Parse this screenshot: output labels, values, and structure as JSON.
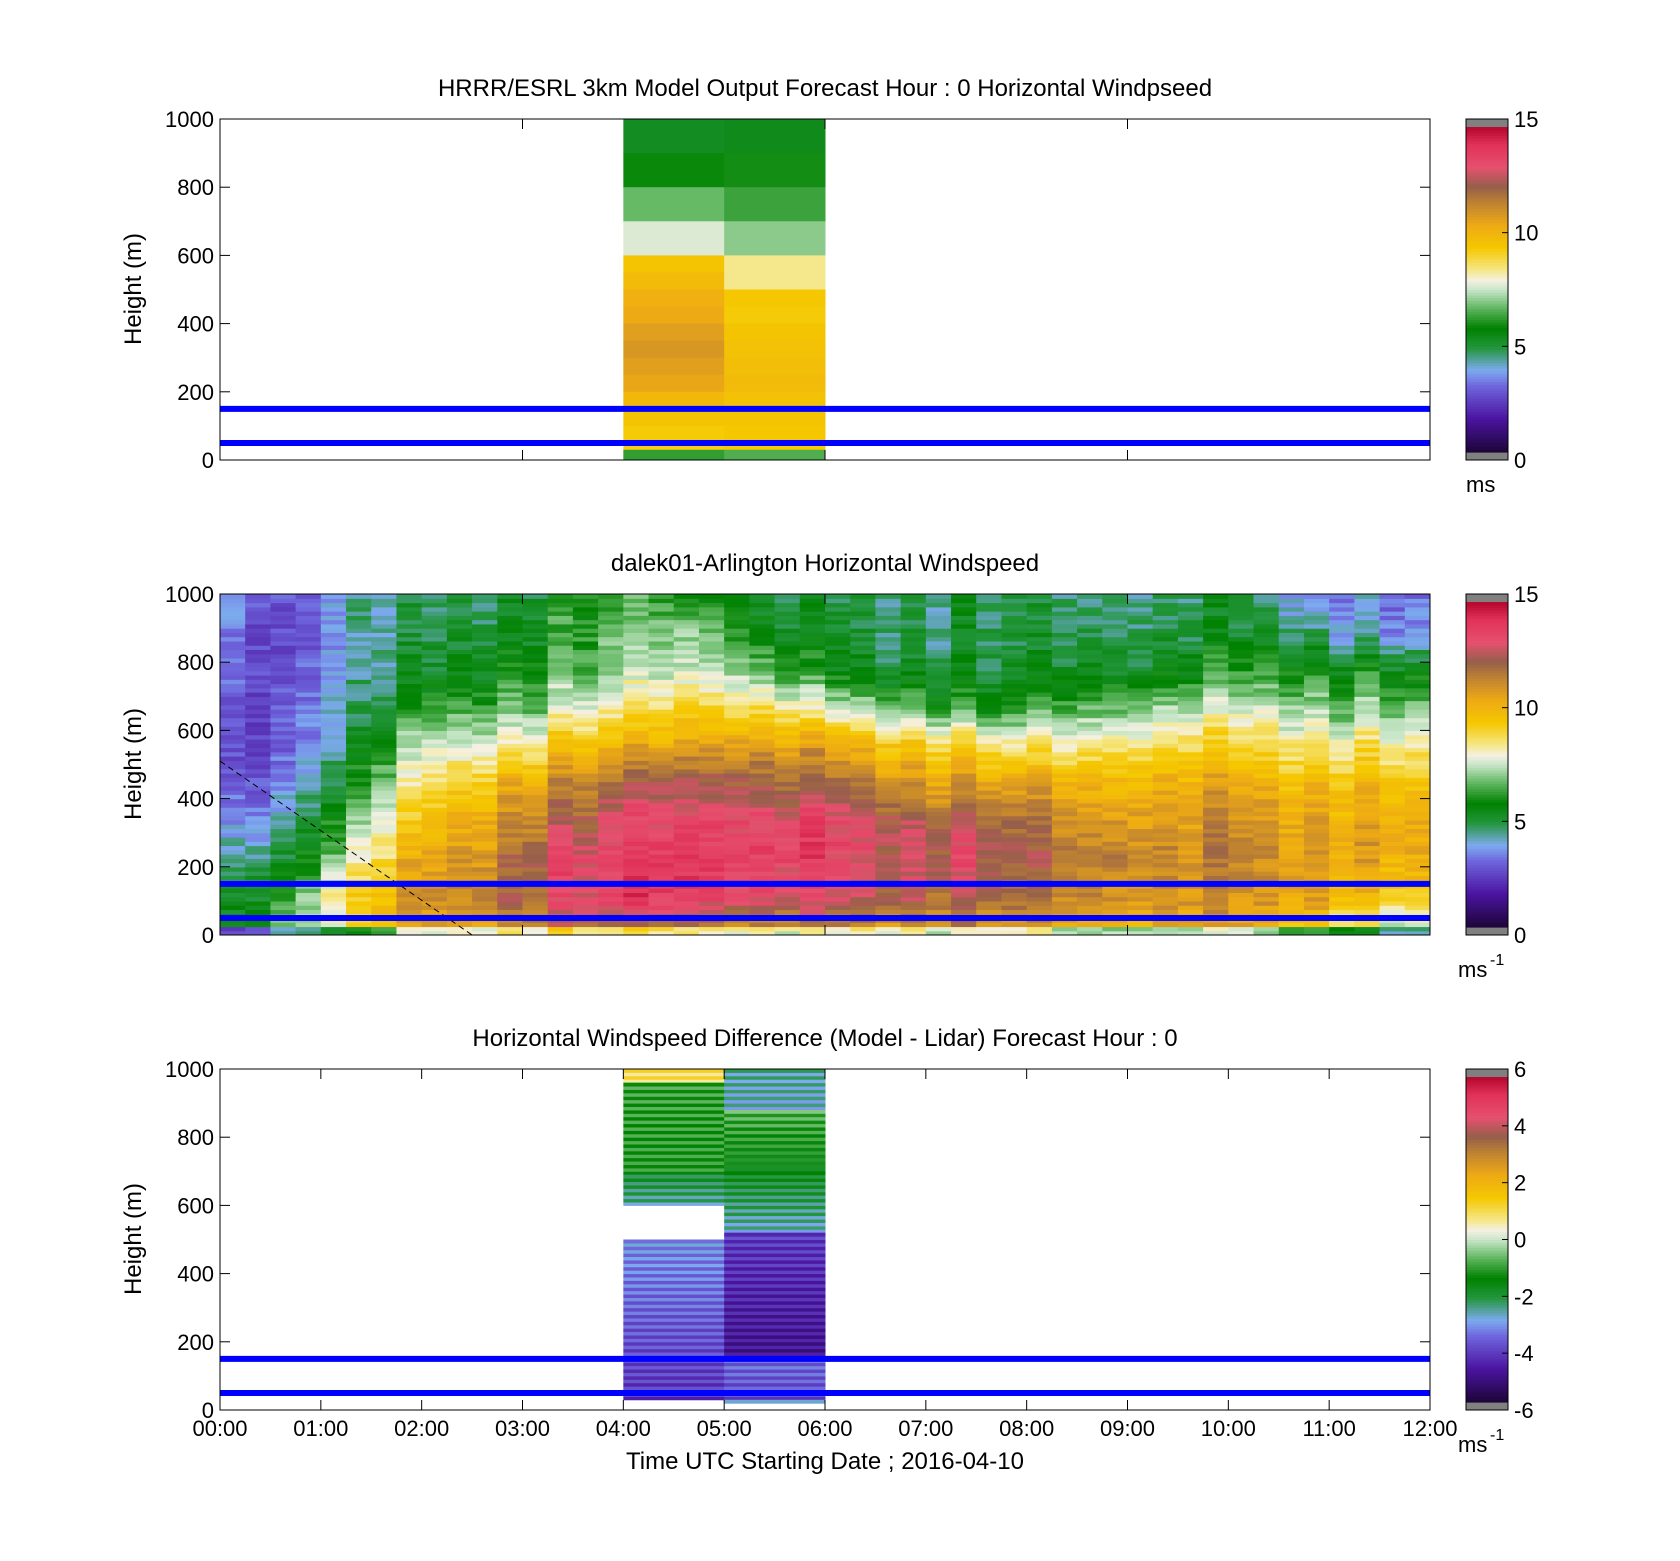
{
  "figure": {
    "xlabel": "Time UTC  Starting Date ; 2016-04-10",
    "xticks": [
      "00:00",
      "01:00",
      "02:00",
      "03:00",
      "04:00",
      "05:00",
      "06:00",
      "07:00",
      "08:00",
      "09:00",
      "10:00",
      "11:00",
      "12:00"
    ]
  },
  "chart_data": [
    {
      "type": "heatmap",
      "title": "HRRR/ESRL 3km Model Output   Forecast Hour : 0 Horizontal Windpseed",
      "ylabel": "Height (m)",
      "yticks": [
        "0",
        "200",
        "400",
        "600",
        "800",
        "1000"
      ],
      "xlim_hours": [
        0,
        12
      ],
      "ylim": [
        0,
        1000
      ],
      "colorbar": {
        "min": 0,
        "max": 15,
        "ticks": [
          "0",
          "5",
          "10",
          "15"
        ],
        "unit": "ms"
      },
      "reference_lines_m": [
        50,
        150
      ],
      "columns": [
        {
          "t0": 4,
          "t1": 5,
          "h_top": [
            1000,
            900,
            800,
            700,
            600,
            550,
            500,
            450,
            400,
            350,
            300,
            250,
            200,
            150,
            100,
            60,
            30,
            0
          ],
          "values": [
            5.2,
            5.8,
            6.7,
            7.7,
            9.6,
            9.9,
            10.3,
            10.5,
            10.8,
            11.0,
            10.8,
            10.6,
            10.0,
            9.6,
            9.4,
            9.3,
            6.2
          ]
        },
        {
          "t0": 5,
          "t1": 6,
          "h_top": [
            1000,
            900,
            800,
            700,
            600,
            500,
            450,
            400,
            350,
            300,
            250,
            200,
            150,
            100,
            60,
            30,
            0
          ],
          "values": [
            5.3,
            5.9,
            6.3,
            7.0,
            8.4,
            9.5,
            9.4,
            9.6,
            9.7,
            9.8,
            9.9,
            9.7,
            9.6,
            9.5,
            9.4,
            6.5
          ]
        }
      ]
    },
    {
      "type": "heatmap",
      "title": "dalek01-Arlington  Horizontal Windspeed",
      "ylabel": "Height (m)",
      "yticks": [
        "0",
        "200",
        "400",
        "600",
        "800",
        "1000"
      ],
      "xlim_hours": [
        0,
        12
      ],
      "ylim": [
        0,
        1000
      ],
      "colorbar": {
        "min": 0,
        "max": 15,
        "ticks": [
          "0",
          "5",
          "10",
          "15"
        ],
        "unit": "ms",
        "unit_exp": "-1"
      },
      "reference_lines_m": [
        50,
        150
      ],
      "data_end_hour": 11.9,
      "ml_height_line": {
        "x_hours": [
          0,
          2.5
        ],
        "y_m": [
          510,
          0
        ]
      },
      "profiles": [
        {
          "t": 0.0,
          "v": [
            5.2,
            4.8,
            4.2,
            3.2,
            2.6,
            2.4,
            2.8,
            3.0,
            3.3,
            3.5
          ]
        },
        {
          "t": 0.75,
          "v": [
            7.8,
            6.8,
            5.8,
            4.8,
            4.2,
            3.6,
            3.4,
            3.2,
            3.0,
            3.2
          ]
        },
        {
          "t": 1.25,
          "v": [
            9.0,
            9.5,
            8.0,
            7.0,
            6.0,
            5.2,
            4.8,
            4.5,
            4.5,
            4.8
          ]
        },
        {
          "t": 2.0,
          "v": [
            10.5,
            11.0,
            10.5,
            9.5,
            8.5,
            7.5,
            6.0,
            5.0,
            4.6,
            4.5
          ]
        },
        {
          "t": 2.5,
          "v": [
            11.0,
            11.5,
            11.0,
            10.5,
            9.5,
            7.8,
            6.5,
            5.5,
            5.0,
            4.8
          ]
        },
        {
          "t": 3.0,
          "v": [
            11.5,
            12.5,
            12.5,
            11.5,
            10.8,
            8.5,
            7.0,
            6.0,
            5.5,
            5.2
          ]
        },
        {
          "t": 3.5,
          "v": [
            12.0,
            13.5,
            13.5,
            12.5,
            11.5,
            10.0,
            7.8,
            6.8,
            6.2,
            6.2
          ]
        },
        {
          "t": 4.0,
          "v": [
            12.0,
            14.0,
            14.0,
            13.5,
            12.5,
            10.5,
            8.5,
            7.5,
            7.0,
            6.5
          ]
        },
        {
          "t": 4.5,
          "v": [
            12.0,
            14.5,
            14.5,
            14.0,
            13.0,
            11.0,
            9.5,
            8.0,
            7.5,
            6.5
          ]
        },
        {
          "t": 5.0,
          "v": [
            11.5,
            14.0,
            14.5,
            14.0,
            13.0,
            11.5,
            9.5,
            8.0,
            7.0,
            6.0
          ]
        },
        {
          "t": 5.5,
          "v": [
            11.0,
            13.5,
            14.0,
            13.5,
            12.5,
            11.0,
            9.0,
            6.5,
            5.5,
            5.0
          ]
        },
        {
          "t": 6.0,
          "v": [
            11.0,
            13.0,
            13.5,
            13.5,
            12.0,
            10.5,
            7.5,
            5.5,
            5.0,
            4.5
          ]
        },
        {
          "t": 6.5,
          "v": [
            11.0,
            12.5,
            13.0,
            13.0,
            11.5,
            10.0,
            7.0,
            5.2,
            4.8,
            4.6
          ]
        },
        {
          "t": 7.0,
          "v": [
            11.0,
            12.5,
            13.0,
            12.5,
            11.0,
            9.5,
            6.5,
            5.0,
            4.8,
            4.8
          ]
        },
        {
          "t": 7.5,
          "v": [
            11.0,
            12.5,
            13.0,
            12.5,
            11.0,
            9.0,
            6.0,
            5.2,
            5.0,
            5.0
          ]
        },
        {
          "t": 8.0,
          "v": [
            11.0,
            12.0,
            12.5,
            12.0,
            10.8,
            8.5,
            6.2,
            5.2,
            5.0,
            5.0
          ]
        },
        {
          "t": 8.5,
          "v": [
            10.5,
            11.8,
            12.0,
            11.5,
            10.5,
            8.8,
            7.0,
            5.8,
            5.0,
            4.8
          ]
        },
        {
          "t": 9.0,
          "v": [
            10.5,
            11.5,
            12.0,
            11.5,
            10.5,
            9.0,
            7.0,
            5.5,
            5.0,
            4.8
          ]
        },
        {
          "t": 9.5,
          "v": [
            10.5,
            11.5,
            11.5,
            11.0,
            10.5,
            9.2,
            7.5,
            5.8,
            5.0,
            4.8
          ]
        },
        {
          "t": 10.0,
          "v": [
            10.5,
            11.0,
            11.5,
            11.0,
            10.5,
            9.0,
            7.5,
            6.0,
            5.0,
            4.6
          ]
        },
        {
          "t": 10.5,
          "v": [
            10.0,
            11.0,
            11.0,
            10.8,
            10.0,
            8.8,
            7.5,
            6.0,
            4.8,
            4.0
          ]
        },
        {
          "t": 11.0,
          "v": [
            9.0,
            10.5,
            10.8,
            10.5,
            10.0,
            8.5,
            7.0,
            5.8,
            4.2,
            3.5
          ]
        },
        {
          "t": 11.5,
          "v": [
            7.0,
            9.5,
            10.5,
            10.5,
            9.8,
            8.5,
            7.0,
            5.5,
            3.8,
            3.2
          ]
        }
      ]
    },
    {
      "type": "heatmap",
      "title": "Horizontal Windspeed Difference (Model - Lidar) Forecast Hour : 0",
      "ylabel": "Height (m)",
      "yticks": [
        "0",
        "200",
        "400",
        "600",
        "800",
        "1000"
      ],
      "xlim_hours": [
        0,
        12
      ],
      "ylim": [
        0,
        1000
      ],
      "colorbar": {
        "min": -6,
        "max": 6,
        "ticks": [
          "-6",
          "-4",
          "-2",
          "0",
          "2",
          "4",
          "6"
        ],
        "unit": "ms",
        "unit_exp": "-1"
      },
      "reference_lines_m": [
        50,
        150
      ],
      "columns": [
        {
          "t0": 4,
          "t1": 5,
          "segments": [
            {
              "y0": 960,
              "y1": 1000,
              "v0": 1.0,
              "v1": 1.0
            },
            {
              "y0": 690,
              "y1": 960,
              "v0": -1.2,
              "v1": -1.0
            },
            {
              "y0": 600,
              "y1": 690,
              "v0": -2.6,
              "v1": -2.0
            },
            {
              "y0": 30,
              "y1": 500,
              "v0": -4.3,
              "v1": -3.2
            }
          ]
        },
        {
          "t0": 5,
          "t1": 6,
          "segments": [
            {
              "y0": 880,
              "y1": 1000,
              "v0": -2.8,
              "v1": -2.6
            },
            {
              "y0": 700,
              "y1": 880,
              "v0": -1.6,
              "v1": -0.8
            },
            {
              "y0": 520,
              "y1": 700,
              "v0": -2.8,
              "v1": -1.8
            },
            {
              "y0": 150,
              "y1": 520,
              "v0": -5.0,
              "v1": -4.2
            },
            {
              "y0": 30,
              "y1": 150,
              "v0": -4.0,
              "v1": -3.6
            },
            {
              "y0": 20,
              "y1": 30,
              "v0": -2.5,
              "v1": -2.5
            }
          ]
        }
      ]
    }
  ]
}
